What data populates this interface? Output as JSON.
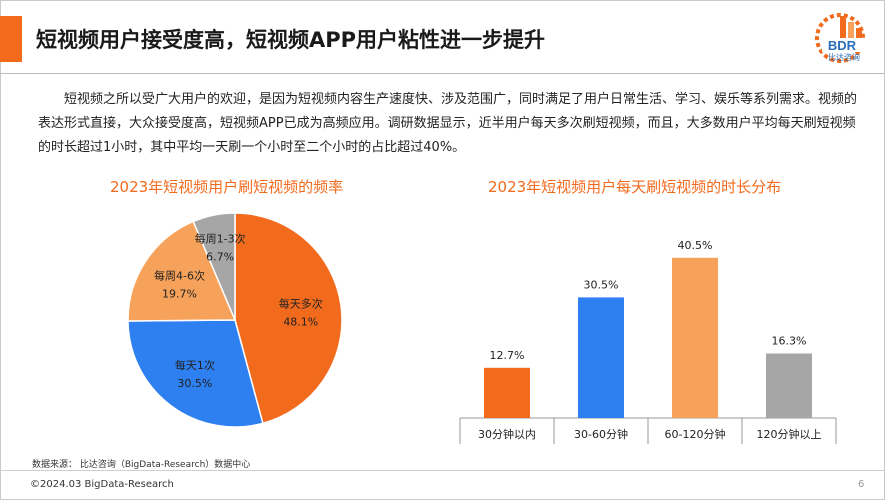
{
  "header": {
    "title": "短视频用户接受度高，短视频APP用户粘性进一步提升",
    "logo_text": "BDR",
    "logo_subtitle": "比达咨询"
  },
  "intro": "短视频之所以受广大用户的欢迎，是因为短视频内容生产速度快、涉及范围广，同时满足了用户日常生活、学习、娱乐等系列需求。视频的表达形式直接，大众接受度高，短视频APP已成为高频应用。调研数据显示，近半用户每天多次刷短视频，而且，大多数用户平均每天刷短视频的时长超过1小时，其中平均一天刷一个小时至二个小时的占比超过40%。",
  "chart_data": [
    {
      "type": "pie",
      "title": "2023年短视频用户刷短视频的频率",
      "categories": [
        "每天多次",
        "每天1次",
        "每周4-6次",
        "每周1-3次"
      ],
      "values": [
        48.1,
        30.5,
        19.7,
        6.7
      ],
      "value_labels": [
        "48.1%",
        "30.5%",
        "19.7%",
        "6.7%"
      ],
      "colors": [
        "#f26b1d",
        "#2e7ff0",
        "#f7a25a",
        "#a6a6a6"
      ]
    },
    {
      "type": "bar",
      "title": "2023年短视频用户每天刷短视频的时长分布",
      "categories": [
        "30分钟以内",
        "30-60分钟",
        "60-120分钟",
        "120分钟以上"
      ],
      "values": [
        12.7,
        30.5,
        40.5,
        16.3
      ],
      "value_labels": [
        "12.7%",
        "30.5%",
        "40.5%",
        "16.3%"
      ],
      "colors": [
        "#f26b1d",
        "#2e7ff0",
        "#f7a25a",
        "#a6a6a6"
      ],
      "ylim": [
        0,
        45
      ],
      "grid": false
    }
  ],
  "footer": {
    "source": "数据来源：  比达咨询（BigData-Research）数据中心",
    "copyright": "©2024.03 BigData-Research",
    "page": "6"
  }
}
